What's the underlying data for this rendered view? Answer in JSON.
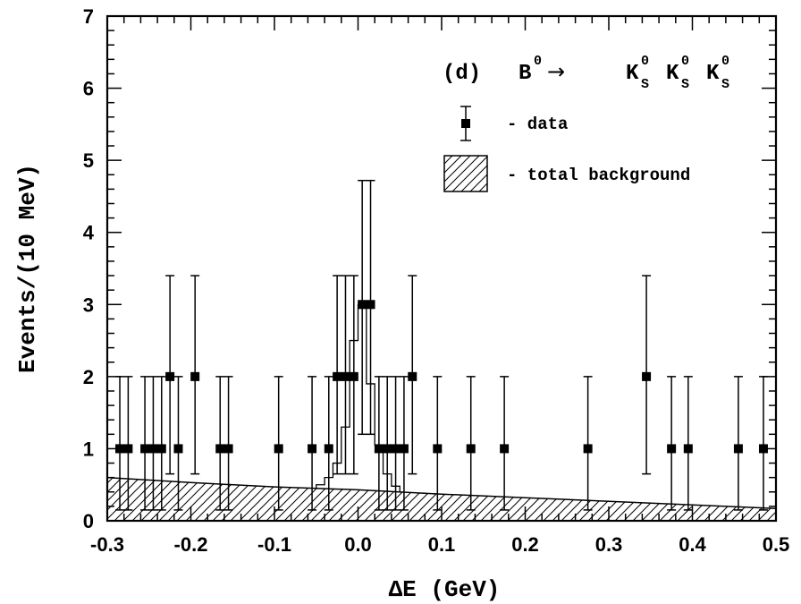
{
  "chart_data": {
    "type": "scatter",
    "panel_label": "(d)",
    "process": {
      "parent": "B",
      "parent_sup": "0",
      "arrow": "→",
      "daughter": "K",
      "daughter_sub": "S",
      "daughter_sup": "0"
    },
    "xlabel": "ΔE  (GeV)",
    "ylabel": "Events/(10 MeV)",
    "xlim": [
      -0.3,
      0.5
    ],
    "ylim": [
      0,
      7
    ],
    "x_ticks": [
      "-0.3",
      "-0.2",
      "-0.1",
      "0.0",
      "0.1",
      "0.2",
      "0.3",
      "0.4",
      "0.5"
    ],
    "y_ticks": [
      "0",
      "1",
      "2",
      "3",
      "4",
      "5",
      "6",
      "7"
    ],
    "legend": {
      "data_label": "- data",
      "background_label": "- total background"
    },
    "data_points": [
      {
        "x": -0.285,
        "y": 1,
        "err_lo": 0.85,
        "err_hi": 1.0
      },
      {
        "x": -0.275,
        "y": 1,
        "err_lo": 0.85,
        "err_hi": 1.0
      },
      {
        "x": -0.255,
        "y": 1,
        "err_lo": 0.85,
        "err_hi": 1.0
      },
      {
        "x": -0.245,
        "y": 1,
        "err_lo": 0.85,
        "err_hi": 1.0
      },
      {
        "x": -0.235,
        "y": 1,
        "err_lo": 0.85,
        "err_hi": 1.0
      },
      {
        "x": -0.225,
        "y": 2,
        "err_lo": 1.35,
        "err_hi": 1.4
      },
      {
        "x": -0.215,
        "y": 1,
        "err_lo": 0.85,
        "err_hi": 1.0
      },
      {
        "x": -0.195,
        "y": 2,
        "err_lo": 1.35,
        "err_hi": 1.4
      },
      {
        "x": -0.165,
        "y": 1,
        "err_lo": 0.85,
        "err_hi": 1.0
      },
      {
        "x": -0.155,
        "y": 1,
        "err_lo": 0.85,
        "err_hi": 1.0
      },
      {
        "x": -0.095,
        "y": 1,
        "err_lo": 0.85,
        "err_hi": 1.0
      },
      {
        "x": -0.055,
        "y": 1,
        "err_lo": 0.85,
        "err_hi": 1.0
      },
      {
        "x": -0.035,
        "y": 1,
        "err_lo": 0.85,
        "err_hi": 1.0
      },
      {
        "x": -0.025,
        "y": 2,
        "err_lo": 1.35,
        "err_hi": 1.4
      },
      {
        "x": -0.015,
        "y": 2,
        "err_lo": 1.35,
        "err_hi": 1.4
      },
      {
        "x": -0.005,
        "y": 2,
        "err_lo": 1.35,
        "err_hi": 1.4
      },
      {
        "x": 0.005,
        "y": 3,
        "err_lo": 1.8,
        "err_hi": 1.72
      },
      {
        "x": 0.015,
        "y": 3,
        "err_lo": 1.8,
        "err_hi": 1.72
      },
      {
        "x": 0.025,
        "y": 1,
        "err_lo": 0.85,
        "err_hi": 1.0
      },
      {
        "x": 0.035,
        "y": 1,
        "err_lo": 0.85,
        "err_hi": 1.0
      },
      {
        "x": 0.045,
        "y": 1,
        "err_lo": 0.85,
        "err_hi": 1.0
      },
      {
        "x": 0.055,
        "y": 1,
        "err_lo": 0.85,
        "err_hi": 1.0
      },
      {
        "x": 0.065,
        "y": 2,
        "err_lo": 1.35,
        "err_hi": 1.4
      },
      {
        "x": 0.095,
        "y": 1,
        "err_lo": 0.85,
        "err_hi": 1.0
      },
      {
        "x": 0.135,
        "y": 1,
        "err_lo": 0.85,
        "err_hi": 1.0
      },
      {
        "x": 0.175,
        "y": 1,
        "err_lo": 0.85,
        "err_hi": 1.0
      },
      {
        "x": 0.275,
        "y": 1,
        "err_lo": 0.85,
        "err_hi": 1.0
      },
      {
        "x": 0.345,
        "y": 2,
        "err_lo": 1.35,
        "err_hi": 1.4
      },
      {
        "x": 0.375,
        "y": 1,
        "err_lo": 0.85,
        "err_hi": 1.0
      },
      {
        "x": 0.395,
        "y": 1,
        "err_lo": 0.85,
        "err_hi": 1.0
      },
      {
        "x": 0.455,
        "y": 1,
        "err_lo": 0.85,
        "err_hi": 1.0
      },
      {
        "x": 0.485,
        "y": 1,
        "err_lo": 0.85,
        "err_hi": 1.0
      }
    ],
    "background_curve": [
      {
        "x": -0.3,
        "y": 0.6
      },
      {
        "x": -0.2,
        "y": 0.53
      },
      {
        "x": -0.1,
        "y": 0.47
      },
      {
        "x": 0.0,
        "y": 0.43
      },
      {
        "x": 0.1,
        "y": 0.37
      },
      {
        "x": 0.2,
        "y": 0.32
      },
      {
        "x": 0.3,
        "y": 0.27
      },
      {
        "x": 0.4,
        "y": 0.22
      },
      {
        "x": 0.5,
        "y": 0.17
      }
    ],
    "total_fit_histogram": [
      {
        "x0": -0.3,
        "x1": -0.05,
        "y": null
      },
      {
        "x0": -0.05,
        "x1": -0.04,
        "y": 0.5
      },
      {
        "x0": -0.04,
        "x1": -0.03,
        "y": 0.6
      },
      {
        "x0": -0.03,
        "x1": -0.02,
        "y": 0.8
      },
      {
        "x0": -0.02,
        "x1": -0.01,
        "y": 1.3
      },
      {
        "x0": -0.01,
        "x1": 0.0,
        "y": 2.5
      },
      {
        "x0": 0.0,
        "x1": 0.01,
        "y": 3.0
      },
      {
        "x0": 0.01,
        "x1": 0.02,
        "y": 1.9
      },
      {
        "x0": 0.02,
        "x1": 0.03,
        "y": 1.05
      },
      {
        "x0": 0.03,
        "x1": 0.04,
        "y": 0.65
      },
      {
        "x0": 0.04,
        "x1": 0.05,
        "y": 0.48
      },
      {
        "x0": 0.05,
        "x1": 0.5,
        "y": null
      }
    ],
    "grid": false,
    "legend_position": "top-right"
  }
}
